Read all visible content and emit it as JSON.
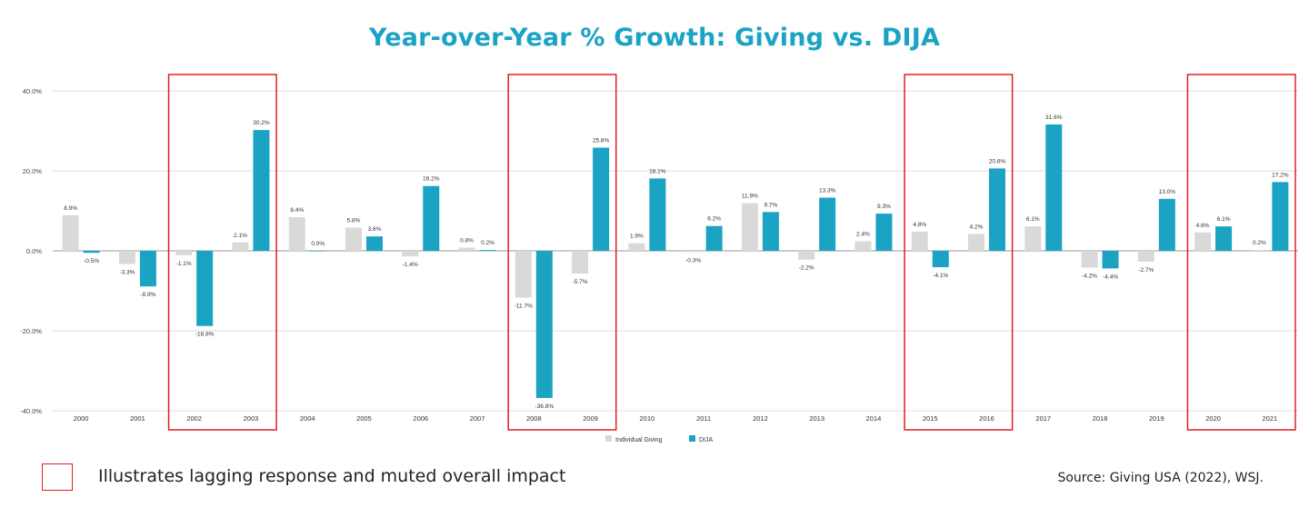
{
  "title": "Year-over-Year % Growth: Giving vs. DIJA",
  "chart_data": {
    "type": "bar",
    "title": "Year-over-Year % Growth: Giving vs. DIJA",
    "xlabel": "",
    "ylabel": "",
    "ylim": [
      -40,
      40
    ],
    "yticks": [
      40,
      20,
      0,
      -20,
      -40
    ],
    "ytick_labels": [
      "40.0%",
      "20.0%",
      "0.0%",
      "-20.0%",
      "-40.0%"
    ],
    "grid": true,
    "legend_position": "bottom-center",
    "categories": [
      "2000",
      "2001",
      "2002",
      "2003",
      "2004",
      "2005",
      "2006",
      "2007",
      "2008",
      "2009",
      "2010",
      "2011",
      "2012",
      "2013",
      "2014",
      "2015",
      "2016",
      "2017",
      "2018",
      "2019",
      "2020",
      "2021"
    ],
    "series": [
      {
        "name": "Individual Giving",
        "color": "#d9d9d9",
        "values": [
          8.9,
          -3.3,
          -1.1,
          2.1,
          8.4,
          5.8,
          -1.4,
          0.8,
          -11.7,
          -5.7,
          1.9,
          -0.3,
          11.9,
          -2.2,
          2.4,
          4.8,
          4.2,
          6.1,
          -4.2,
          -2.7,
          4.6,
          0.2
        ],
        "labels": [
          "8.9%",
          "-3.3%",
          "-1.1%",
          "2.1%",
          "8.4%",
          "5.8%",
          "-1.4%",
          "0.8%",
          "-11.7%",
          "-5.7%",
          "1.9%",
          "-0.3%",
          "11.9%",
          "-2.2%",
          "2.4%",
          "4.8%",
          "4.2%",
          "6.1%",
          "-4.2%",
          "-2.7%",
          "4.6%",
          "0.2%"
        ]
      },
      {
        "name": "DIJA",
        "color": "#1ba3c4",
        "values": [
          -0.5,
          -8.9,
          -18.8,
          30.2,
          0.0,
          3.6,
          16.2,
          0.2,
          -36.8,
          25.8,
          18.1,
          6.2,
          9.7,
          13.3,
          9.3,
          -4.1,
          20.6,
          31.6,
          -4.4,
          13.0,
          6.1,
          17.2
        ],
        "labels": [
          "-0.5%",
          "-8.9%",
          "-18.8%",
          "30.2%",
          "0.0%",
          "3.6%",
          "16.2%",
          "0.2%",
          "-36.8%",
          "25.8%",
          "18.1%",
          "6.2%",
          "9.7%",
          "13.3%",
          "9.3%",
          "-4.1%",
          "20.6%",
          "31.6%",
          "-4.4%",
          "13.0%",
          "6.1%",
          "17.2%"
        ]
      }
    ],
    "highlight_groups": [
      [
        "2002",
        "2003"
      ],
      [
        "2008",
        "2009"
      ],
      [
        "2015",
        "2016"
      ],
      [
        "2020",
        "2021"
      ]
    ],
    "highlight_color": "#e02020"
  },
  "legend": {
    "highlight_description": "Illustrates lagging response and muted overall impact"
  },
  "source": "Source: Giving USA (2022), WSJ."
}
